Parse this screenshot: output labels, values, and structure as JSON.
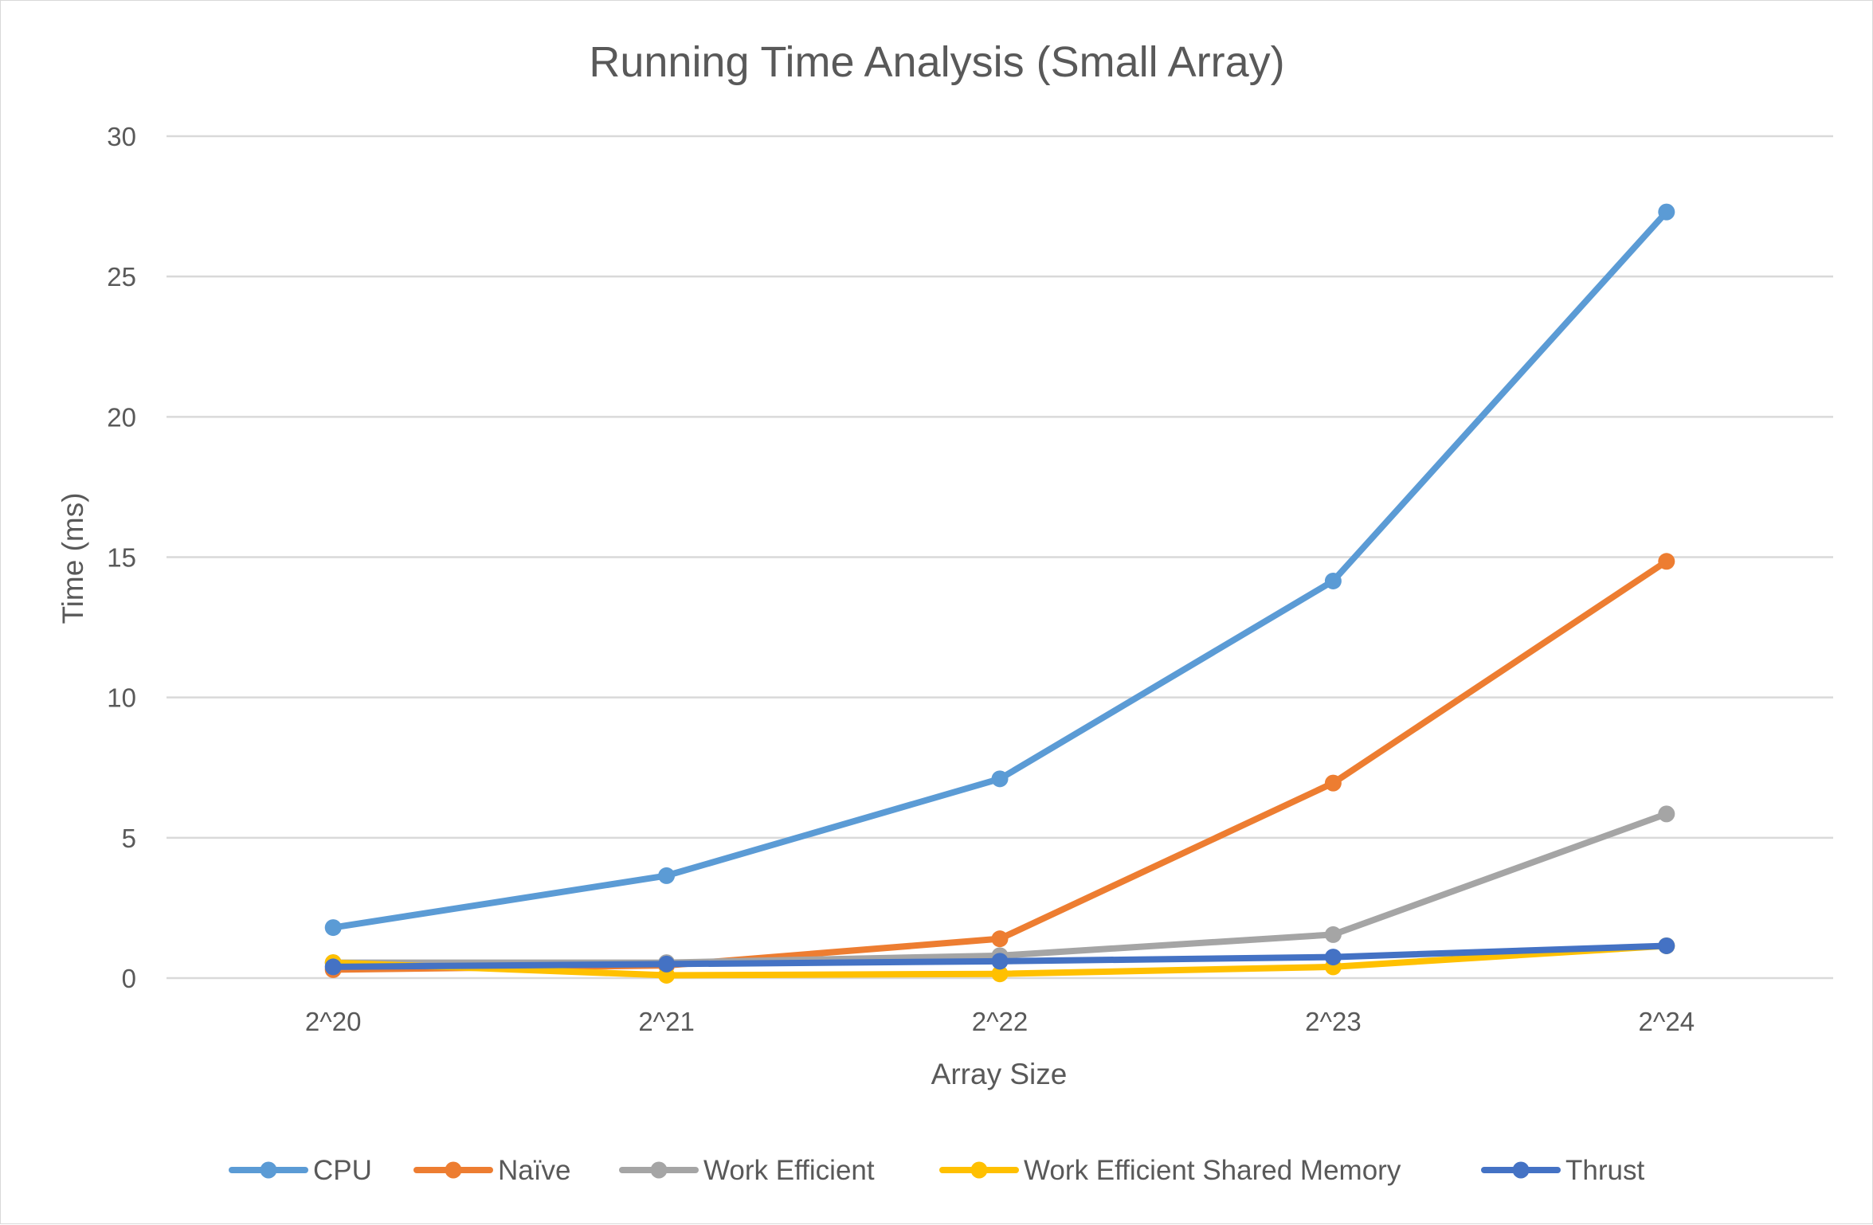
{
  "chart_data": {
    "type": "line",
    "title": "Running Time Analysis (Small Array)",
    "xlabel": "Array Size",
    "ylabel": "Time (ms)",
    "categories": [
      "2^20",
      "2^21",
      "2^22",
      "2^23",
      "2^24"
    ],
    "ylim": [
      0,
      30
    ],
    "yticks": [
      0,
      5,
      10,
      15,
      20,
      25,
      30
    ],
    "grid": true,
    "legend_position": "bottom",
    "series": [
      {
        "name": "CPU",
        "color": "#5b9bd5",
        "values": [
          1.8,
          3.65,
          7.1,
          14.15,
          27.3
        ]
      },
      {
        "name": "Naïve",
        "color": "#ed7d31",
        "values": [
          0.3,
          0.45,
          1.4,
          6.95,
          14.85
        ]
      },
      {
        "name": "Work Efficient",
        "color": "#a5a5a5",
        "values": [
          0.55,
          0.55,
          0.8,
          1.55,
          5.85
        ]
      },
      {
        "name": "Work Efficient Shared Memory",
        "color": "#ffc000",
        "values": [
          0.55,
          0.1,
          0.15,
          0.4,
          1.15
        ]
      },
      {
        "name": "Thrust",
        "color": "#4472c4",
        "values": [
          0.4,
          0.5,
          0.6,
          0.75,
          1.15
        ]
      }
    ]
  }
}
